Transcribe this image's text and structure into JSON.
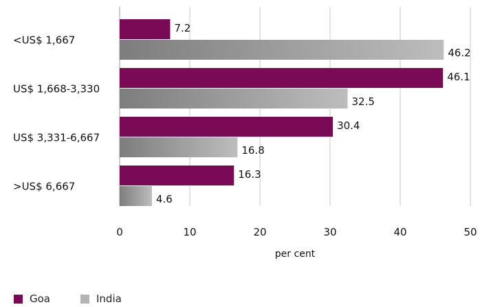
{
  "chart_data": {
    "type": "bar",
    "orientation": "horizontal",
    "categories": [
      "<US$ 1,667",
      "US$ 1,668-3,330",
      "US$ 3,331-6,667",
      ">US$ 6,667"
    ],
    "series": [
      {
        "name": "Goa",
        "values": [
          7.2,
          46.1,
          30.4,
          16.3
        ],
        "color": "#7a0a55"
      },
      {
        "name": "India",
        "values": [
          46.2,
          32.5,
          16.8,
          4.6
        ],
        "color": "#9a9a9a"
      }
    ],
    "xlabel": "per cent",
    "ylabel": "",
    "xlim": [
      0,
      50
    ],
    "xticks": [
      "0",
      "10",
      "20",
      "30",
      "40",
      "50"
    ],
    "data_labels": {
      "Goa": [
        "7.2",
        "46.1",
        "30.4",
        "16.3"
      ],
      "India": [
        "46.2",
        "32.5",
        "16.8",
        "4.6"
      ]
    },
    "grid": "vertical",
    "legend_position": "bottom-left"
  }
}
